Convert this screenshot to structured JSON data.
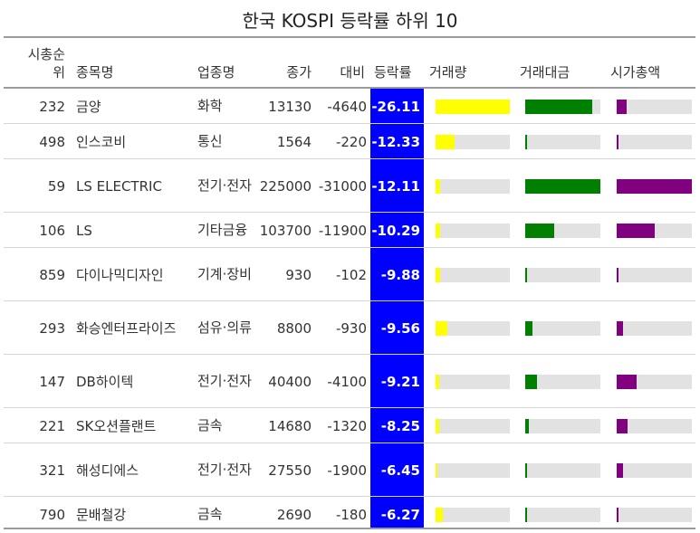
{
  "title": "한국 KOSPI 등락률 하위 10",
  "headers": {
    "rank": "시총순위",
    "name": "종목명",
    "sector": "업종명",
    "close": "종가",
    "change": "대비",
    "rate": "등락률",
    "volume": "거래량",
    "value": "거래대금",
    "mcap": "시가총액"
  },
  "colors": {
    "rate_bg": "#0000ff",
    "volume": "#ffff00",
    "value": "#008000",
    "mcap": "#800080",
    "track": "#e2e2e2"
  },
  "chart_data": {
    "type": "table",
    "columns": [
      "시총순위",
      "종목명",
      "업종명",
      "종가",
      "대비",
      "등락률",
      "거래량",
      "거래대금",
      "시가총액"
    ],
    "bar_fraction_columns": [
      "거래량",
      "거래대금",
      "시가총액"
    ],
    "rows": [
      {
        "rank": "232",
        "name": "금양",
        "sector": "화학",
        "close": "13130",
        "change": "-4640",
        "rate": "-26.11",
        "volume": 1.0,
        "value": 0.89,
        "mcap": 0.13
      },
      {
        "rank": "498",
        "name": "인스코비",
        "sector": "통신",
        "close": "1564",
        "change": "-220",
        "rate": "-12.33",
        "volume": 0.26,
        "value": 0.03,
        "mcap": 0.03
      },
      {
        "rank": "59",
        "name": "LS ELECTRIC",
        "sector": "전기·전자",
        "close": "225000",
        "change": "-31000",
        "rate": "-12.11",
        "volume": 0.06,
        "value": 1.0,
        "mcap": 1.0
      },
      {
        "rank": "106",
        "name": "LS",
        "sector": "기타금융",
        "close": "103700",
        "change": "-11900",
        "rate": "-10.29",
        "volume": 0.06,
        "value": 0.39,
        "mcap": 0.5
      },
      {
        "rank": "859",
        "name": "다이나믹디자인",
        "sector": "기계·장비",
        "close": "930",
        "change": "-102",
        "rate": "-9.88",
        "volume": 0.06,
        "value": 0.01,
        "mcap": 0.02
      },
      {
        "rank": "293",
        "name": "화승엔터프라이즈",
        "sector": "섬유·의류",
        "close": "8800",
        "change": "-930",
        "rate": "-9.56",
        "volume": 0.16,
        "value": 0.1,
        "mcap": 0.08
      },
      {
        "rank": "147",
        "name": "DB하이텍",
        "sector": "전기·전자",
        "close": "40400",
        "change": "-4100",
        "rate": "-9.21",
        "volume": 0.05,
        "value": 0.16,
        "mcap": 0.27
      },
      {
        "rank": "221",
        "name": "SK오션플랜트",
        "sector": "금속",
        "close": "14680",
        "change": "-1320",
        "rate": "-8.25",
        "volume": 0.05,
        "value": 0.05,
        "mcap": 0.14
      },
      {
        "rank": "321",
        "name": "해성디에스",
        "sector": "전기·전자",
        "close": "27550",
        "change": "-1900",
        "rate": "-6.45",
        "volume": 0.02,
        "value": 0.03,
        "mcap": 0.08
      },
      {
        "rank": "790",
        "name": "문배철강",
        "sector": "금속",
        "close": "2690",
        "change": "-180",
        "rate": "-6.27",
        "volume": 0.1,
        "value": 0.02,
        "mcap": 0.02
      }
    ]
  }
}
